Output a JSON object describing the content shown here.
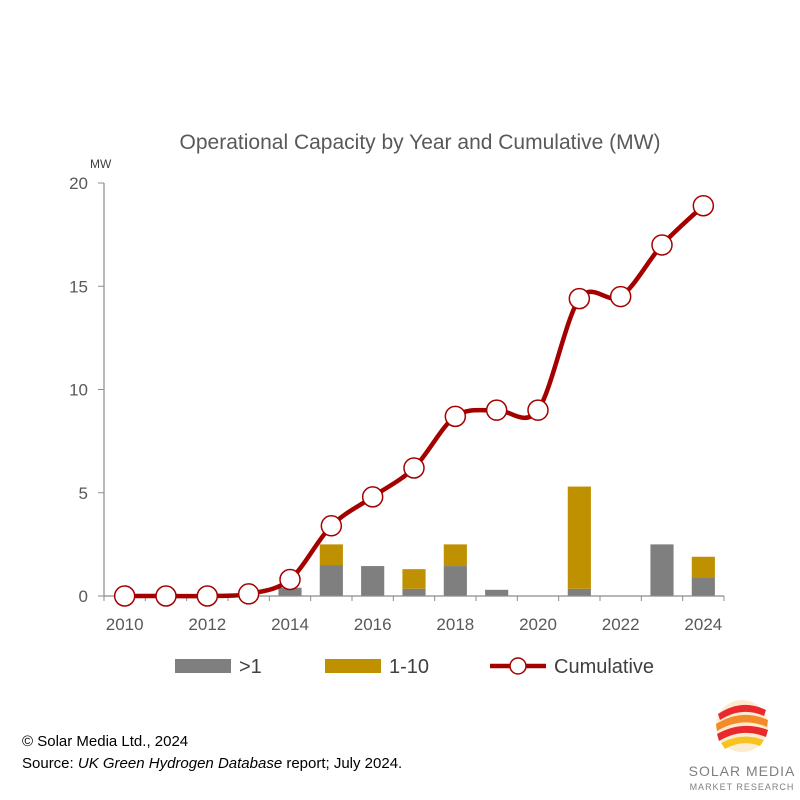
{
  "chart_data": {
    "type": "bar",
    "title": "Operational Capacity by Year and Cumulative (MW)",
    "unit_label": "MW",
    "ylim": [
      0,
      20
    ],
    "y_ticks": [
      0,
      5,
      10,
      15,
      20
    ],
    "x_tick_labels": [
      "2010",
      "2012",
      "2014",
      "2016",
      "2018",
      "2020",
      "2022",
      "2024"
    ],
    "categories": [
      "2010",
      "2011",
      "2012",
      "2013",
      "2014",
      "2015",
      "2016",
      "2017",
      "2018",
      "2019",
      "2020",
      "2021",
      "2022",
      "2023",
      "2024"
    ],
    "stacked": true,
    "series": [
      {
        "name": ">1",
        "kind": "bar",
        "color": "#7f7f7f",
        "values": [
          0,
          0,
          0,
          0,
          0.4,
          1.5,
          1.45,
          0.35,
          1.45,
          0.3,
          0,
          0.35,
          0,
          2.5,
          0.9
        ]
      },
      {
        "name": "1-10",
        "kind": "bar",
        "color": "#bf9000",
        "values": [
          0,
          0,
          0,
          0,
          0,
          1.0,
          0,
          0.95,
          1.05,
          0,
          0,
          4.95,
          0,
          0,
          1.0
        ]
      },
      {
        "name": "Cumulative",
        "kind": "line",
        "color": "#a50000",
        "values": [
          0,
          0,
          0,
          0.1,
          0.8,
          3.4,
          4.8,
          6.2,
          8.7,
          9.0,
          9.0,
          14.4,
          14.5,
          17.0,
          18.9
        ]
      }
    ],
    "legend_position": "bottom",
    "grid": false
  },
  "footer": {
    "copyright": "© Solar Media Ltd., 2024",
    "source_prefix": "Source: ",
    "source_italic": "UK Green Hydrogen Database",
    "source_suffix": " report; July 2024."
  },
  "logo": {
    "line1": "SOLAR MEDIA",
    "line2": "MARKET RESEARCH",
    "colors": [
      "#e8292e",
      "#f28c28",
      "#f7c31e"
    ]
  }
}
